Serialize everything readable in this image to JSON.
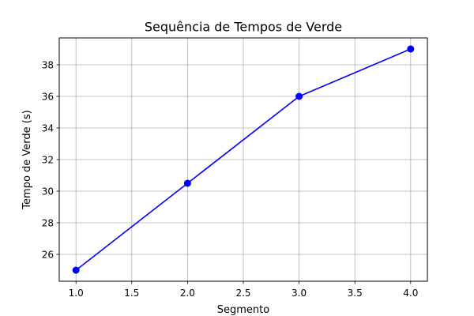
{
  "chart_data": {
    "type": "line",
    "title": "Sequência de Tempos de Verde",
    "xlabel": "Segmento",
    "ylabel": "Tempo de Verde (s)",
    "xlim": [
      0.85,
      4.15
    ],
    "ylim": [
      24.3,
      39.7
    ],
    "xticks": [
      1.0,
      1.5,
      2.0,
      2.5,
      3.0,
      3.5,
      4.0
    ],
    "xtick_labels": [
      "1.0",
      "1.5",
      "2.0",
      "2.5",
      "3.0",
      "3.5",
      "4.0"
    ],
    "yticks": [
      26,
      28,
      30,
      32,
      34,
      36,
      38
    ],
    "ytick_labels": [
      "26",
      "28",
      "30",
      "32",
      "34",
      "36",
      "38"
    ],
    "grid": true,
    "series": [
      {
        "x": [
          1.0,
          2.0,
          3.0,
          4.0
        ],
        "values": [
          25,
          30.5,
          36,
          39
        ],
        "color": "#0000ff",
        "marker": "circle"
      }
    ]
  }
}
